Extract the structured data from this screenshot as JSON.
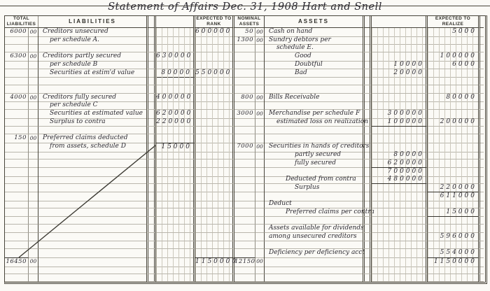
{
  "title": "Statement of Affairs Dec. 31, 1908   Hart and Snell",
  "colors": {
    "ink": "#2b2931",
    "paper": "#fbfaf6",
    "rule_light": "#b9b6ac",
    "rule_mid": "#8f8c82",
    "rule_dark": "#47443a",
    "pinstripe": "#ccc8bc"
  },
  "headers": {
    "total_liabilities": "TOTAL LIABILITIES",
    "liabilities": "LIABILITIES",
    "expected_to_rank": "EXPECTED TO RANK",
    "nominal_assets": "NOMINAL ASSETS",
    "assets": "ASSETS",
    "expected_to_realize": "EXPECTED TO REALIZE"
  },
  "rows": [
    {
      "tl": "6000",
      "tlc": "00",
      "liab": "Creditors unsecured",
      "rank": "600000",
      "nm": "50",
      "nmc": "00",
      "asset": "Cash on hand",
      "rz": "5000"
    },
    {
      "liab": "per schedule A.",
      "li": 1,
      "nm": "1300",
      "nmc": "00",
      "asset": "Sundry debtors per"
    },
    {
      "asset": "schedule E.",
      "ai": 1
    },
    {
      "tl": "6300",
      "tlc": "00",
      "liab": "Creditors partly secured",
      "ma": "630000",
      "asset": "Good",
      "ai": 3,
      "rz": "100000"
    },
    {
      "liab": "per schedule B",
      "li": 1,
      "asset": "Doubtful",
      "ai": 3,
      "mc": "10000",
      "rz": "6000"
    },
    {
      "liab": "Securities at estim'd value",
      "li": 1,
      "ma": "80000",
      "ma_rule": "below",
      "rank": "550000",
      "asset": "Bad",
      "ai": 3,
      "mc": "20000"
    },
    {},
    {},
    {
      "tl": "4000",
      "tlc": "00",
      "liab": "Creditors fully secured",
      "ma": "400000",
      "nm": "800",
      "nmc": "00",
      "asset": "Bills Receivable",
      "rz": "80000"
    },
    {
      "liab": "per schedule C",
      "li": 1
    },
    {
      "liab": "Securities at estimated value",
      "li": 1,
      "ma": "620000",
      "nm": "3000",
      "nmc": "00",
      "asset": "Merchandise per schedule F",
      "mc": "300000"
    },
    {
      "liab": "Surplus to contra",
      "li": 1,
      "ma": "220000",
      "asset": "estimated loss on realization",
      "ai": 1,
      "mc": "100000",
      "mc_rule": "below",
      "rz": "200000"
    },
    {},
    {
      "tl": "150",
      "tlc": "00",
      "liab": "Preferred claims deducted"
    },
    {
      "liab": "from assets, schedule D",
      "li": 1,
      "ma": "15000",
      "ma_rule": "above",
      "nm": "7000",
      "nmc": "00",
      "asset": "Securities in hands of creditors"
    },
    {
      "asset": "partly secured",
      "ai": 3,
      "mc": "80000"
    },
    {
      "asset": "fully secured",
      "ai": 3,
      "mc": "620000"
    },
    {
      "mc": "700000",
      "mc_rule": "above"
    },
    {
      "asset": "Deducted from contra",
      "ai": 2,
      "mc": "480000",
      "mc_rule": "below"
    },
    {
      "asset": "Surplus",
      "ai": 3,
      "rz": "220000"
    },
    {
      "rz": "611000",
      "rz_rule": "above"
    },
    {
      "asset": "Deduct"
    },
    {
      "asset": "Preferred claims per contra",
      "ai": 2,
      "rz": "15000",
      "rz_rule": "below"
    },
    {},
    {
      "asset": "Assets available for dividends"
    },
    {
      "asset": "among unsecured creditors",
      "rz": "596000"
    },
    {},
    {
      "asset": "Deficiency per deficiency acct",
      "rz": "554000"
    },
    {
      "tl": "16450",
      "tlc": "00",
      "tl_rule": "above",
      "rank": "1150000",
      "rank_rule": "above",
      "nm": "12150",
      "nmc": "00",
      "nm_rule": "above",
      "rz": "1150000",
      "rz_rule": "above"
    },
    {},
    {}
  ]
}
